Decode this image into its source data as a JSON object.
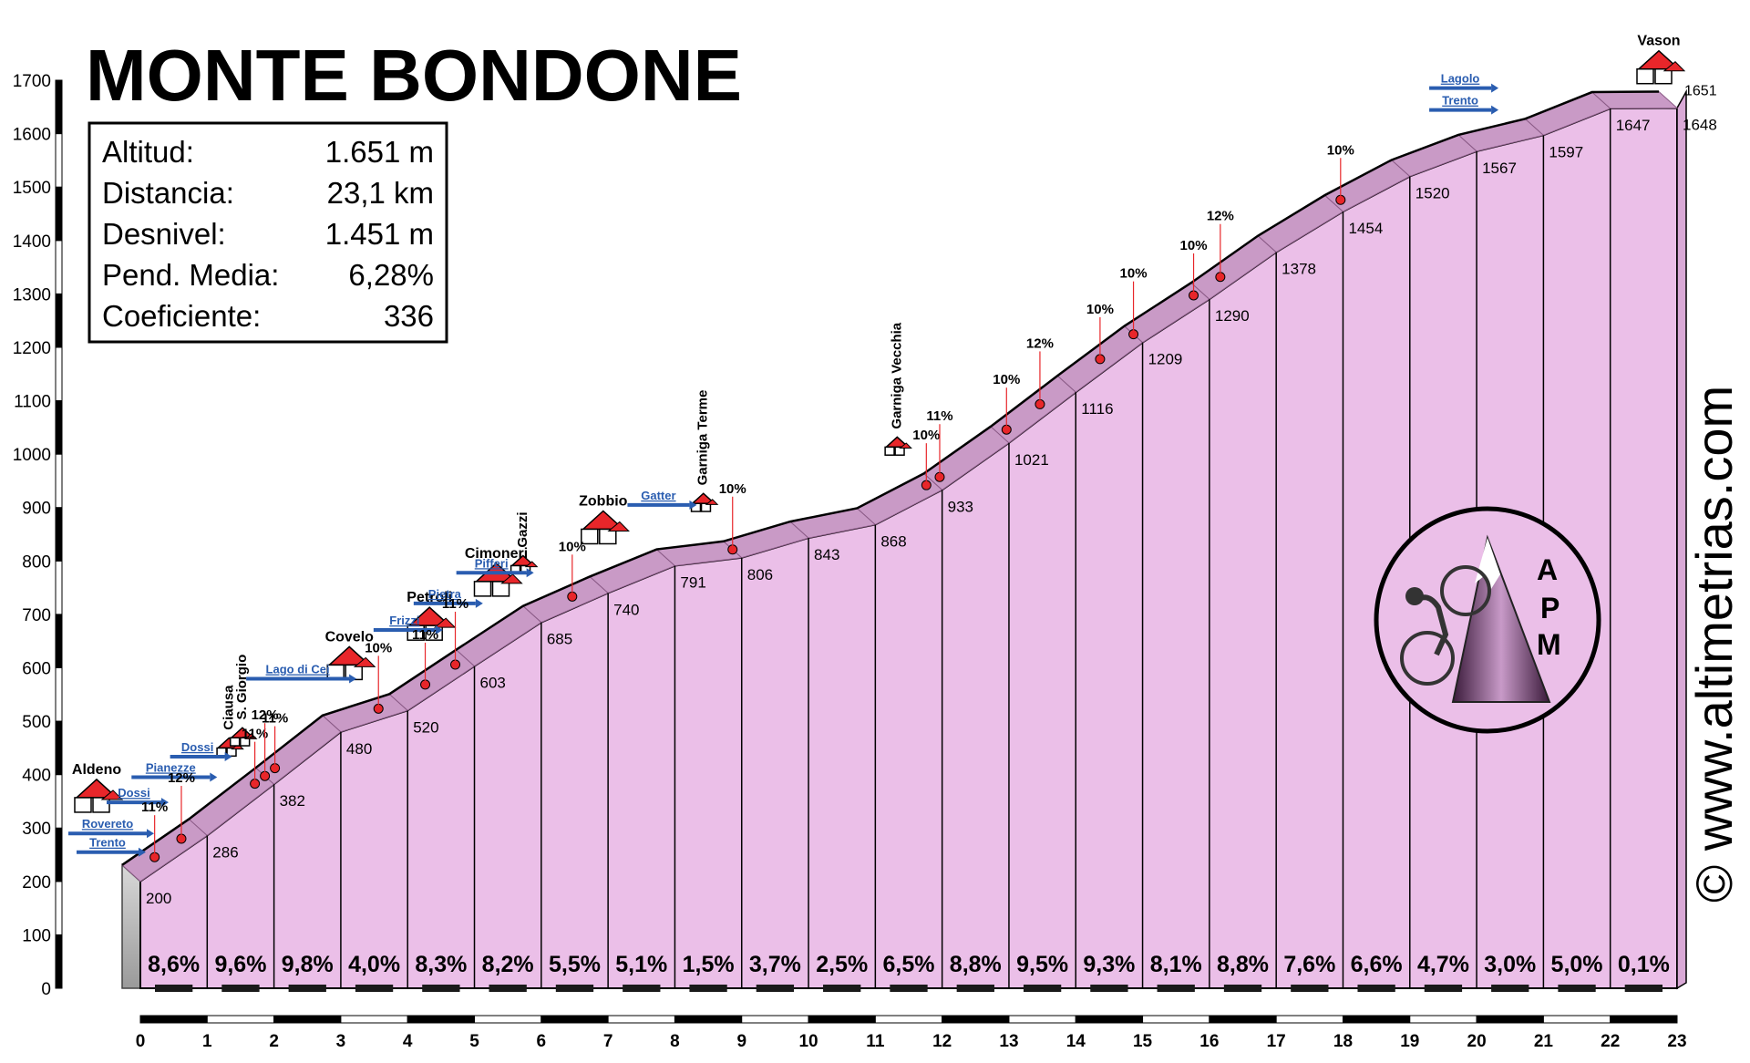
{
  "chart_data": {
    "type": "area",
    "title": "MONTE BONDONE",
    "xlabel": "",
    "ylabel": "",
    "xlim": [
      0,
      23
    ],
    "ylim": [
      0,
      1700
    ],
    "x_ticks": [
      0,
      1,
      2,
      3,
      4,
      5,
      6,
      7,
      8,
      9,
      10,
      11,
      12,
      13,
      14,
      15,
      16,
      17,
      18,
      19,
      20,
      21,
      22,
      23
    ],
    "y_ticks": [
      0,
      100,
      200,
      300,
      400,
      500,
      600,
      700,
      800,
      900,
      1000,
      1100,
      1200,
      1300,
      1400,
      1500,
      1600,
      1700
    ],
    "profile": {
      "x": [
        0,
        1,
        2,
        3,
        4,
        5,
        6,
        7,
        8,
        9,
        10,
        11,
        12,
        13,
        14,
        15,
        16,
        17,
        18,
        19,
        20,
        21,
        22,
        23
      ],
      "y": [
        200,
        286,
        382,
        480,
        520,
        603,
        685,
        740,
        791,
        806,
        843,
        868,
        933,
        1021,
        1116,
        1209,
        1290,
        1378,
        1454,
        1520,
        1567,
        1597,
        1647,
        1648
      ]
    },
    "segment_gradients": [
      "8,6%",
      "9,6%",
      "9,8%",
      "4,0%",
      "8,3%",
      "8,2%",
      "5,5%",
      "5,1%",
      "1,5%",
      "3,7%",
      "2,5%",
      "6,5%",
      "8,8%",
      "9,5%",
      "9,3%",
      "8,1%",
      "8,8%",
      "7,6%",
      "6,6%",
      "4,7%",
      "3,0%",
      "5,0%",
      "0,1%"
    ],
    "summit_altitude_label": "1651",
    "places": [
      {
        "name": "Aldeno",
        "km": 0.0
      },
      {
        "name": "Ciausa",
        "km": 1.6
      },
      {
        "name": "S. Giorgio",
        "km": 1.8
      },
      {
        "name": "Covelo",
        "km": 3.4
      },
      {
        "name": "Petroli",
        "km": 4.6
      },
      {
        "name": "Cimoneri",
        "km": 5.6
      },
      {
        "name": "Gazzi",
        "km": 6.0
      },
      {
        "name": "Zobbio",
        "km": 7.2
      },
      {
        "name": "Garniga Terme",
        "km": 8.7
      },
      {
        "name": "Garniga Vecchia",
        "km": 11.6
      },
      {
        "name": "Vason",
        "km": 23.0
      }
    ],
    "direction_signs": [
      {
        "label": "Rovereto",
        "km": -0.5
      },
      {
        "label": "Trento",
        "km": -0.5
      },
      {
        "label": "Dossi",
        "km": 0.45
      },
      {
        "label": "Pianezze",
        "km": 1.0
      },
      {
        "label": "Dossi",
        "km": 1.4
      },
      {
        "label": "Lago di Cei",
        "km": 2.9
      },
      {
        "label": "Frizzi",
        "km": 4.5
      },
      {
        "label": "Pietra",
        "km": 5.1
      },
      {
        "label": "Pifferi",
        "km": 5.8
      },
      {
        "label": "Gatter",
        "km": 8.3
      },
      {
        "label": "Lagolo",
        "km": 20.3
      },
      {
        "label": "Trento",
        "km": 20.3
      }
    ],
    "steep_markers": [
      {
        "label": "11%",
        "km": 0.35
      },
      {
        "label": "12%",
        "km": 0.75
      },
      {
        "label": "11%",
        "km": 1.85
      },
      {
        "label": "12%",
        "km": 2.0
      },
      {
        "label": "11%",
        "km": 2.15
      },
      {
        "label": "10%",
        "km": 3.7
      },
      {
        "label": "11%",
        "km": 4.4
      },
      {
        "label": "11%",
        "km": 4.85
      },
      {
        "label": "10%",
        "km": 6.6
      },
      {
        "label": "10%",
        "km": 9.0
      },
      {
        "label": "10%",
        "km": 11.9
      },
      {
        "label": "11%",
        "km": 12.1
      },
      {
        "label": "10%",
        "km": 13.1
      },
      {
        "label": "12%",
        "km": 13.6
      },
      {
        "label": "10%",
        "km": 14.5
      },
      {
        "label": "10%",
        "km": 15.0
      },
      {
        "label": "10%",
        "km": 15.9
      },
      {
        "label": "12%",
        "km": 16.3
      },
      {
        "label": "10%",
        "km": 18.1
      }
    ]
  },
  "info_box": {
    "rows": [
      {
        "label": "Altitud:",
        "value": "1.651 m"
      },
      {
        "label": "Distancia:",
        "value": "23,1 km"
      },
      {
        "label": "Desnivel:",
        "value": "1.451 m"
      },
      {
        "label": "Pend. Media:",
        "value": "6,28%"
      },
      {
        "label": "Coeficiente:",
        "value": "336"
      }
    ]
  },
  "watermark": "© www.altimetrias.com",
  "logo_text": [
    "A",
    "P",
    "M"
  ],
  "colors": {
    "profile_fill": "#ebbfe8",
    "road_band": "#c99ac6",
    "road_dark": "#8a5a86",
    "marker_red": "#e8262a",
    "sign_blue": "#2a5db0",
    "house_roof": "#e8262a",
    "gradient_bar": "#1a1a1a"
  }
}
